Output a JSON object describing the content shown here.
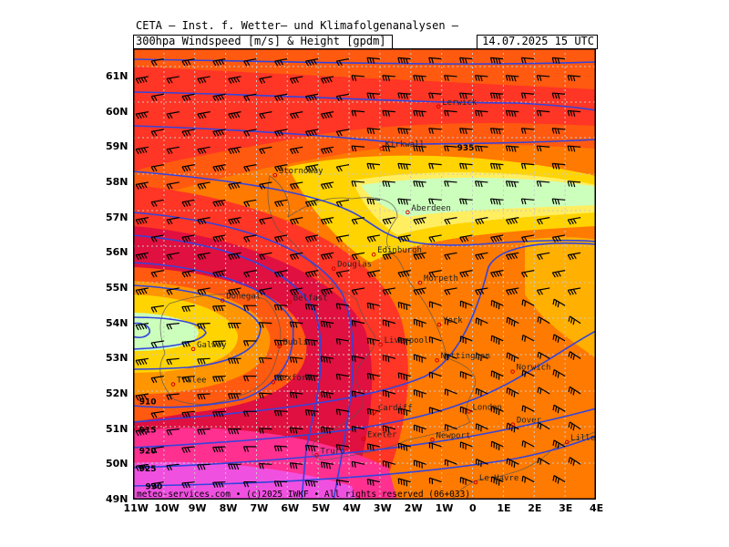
{
  "header": {
    "source_line": "CETA – Inst. f. Wetter– und Klimafolgenanalysen –",
    "product": "300hpa Windspeed [m/s] & Height [gpdm]",
    "valid_time": "14.07.2025 15 UTC"
  },
  "footer": {
    "copyright": "meteo-services.com • (c)2025 IWKF • All rights reserved (06+033)"
  },
  "map": {
    "lon_range": [
      -11,
      4
    ],
    "lat_range": [
      49,
      61.8
    ],
    "lat_labels": [
      "61N",
      "60N",
      "59N",
      "58N",
      "57N",
      "56N",
      "55N",
      "54N",
      "53N",
      "52N",
      "51N",
      "50N",
      "49N"
    ],
    "lon_labels": [
      "11W",
      "10W",
      "9W",
      "8W",
      "7W",
      "6W",
      "5W",
      "4W",
      "3W",
      "2W",
      "1W",
      "0",
      "1E",
      "2E",
      "3E",
      "4E"
    ],
    "contour_labels": [
      {
        "text": "935",
        "lon": -0.5,
        "lat": 58.9
      },
      {
        "text": "910",
        "lon": -10.8,
        "lat": 51.7
      },
      {
        "text": "915",
        "lon": -10.8,
        "lat": 50.9
      },
      {
        "text": "920",
        "lon": -10.8,
        "lat": 50.3
      },
      {
        "text": "925",
        "lon": -10.8,
        "lat": 49.8
      },
      {
        "text": "930",
        "lon": -10.6,
        "lat": 49.3
      }
    ],
    "cities": [
      {
        "name": "Lerwick",
        "lon": -1.1,
        "lat": 60.15
      },
      {
        "name": "Kirkwall",
        "lon": -2.95,
        "lat": 58.95
      },
      {
        "name": "Stornoway",
        "lon": -6.4,
        "lat": 58.2
      },
      {
        "name": "Aberdeen",
        "lon": -2.1,
        "lat": 57.15
      },
      {
        "name": "Edinburgh",
        "lon": -3.2,
        "lat": 55.95
      },
      {
        "name": "Douglas",
        "lon": -4.5,
        "lat": 55.55
      },
      {
        "name": "Morpeth",
        "lon": -1.7,
        "lat": 55.15
      },
      {
        "name": "Donegal",
        "lon": -8.1,
        "lat": 54.65
      },
      {
        "name": "Belfast",
        "lon": -5.93,
        "lat": 54.6
      },
      {
        "name": "York",
        "lon": -1.08,
        "lat": 53.96
      },
      {
        "name": "Galway",
        "lon": -9.05,
        "lat": 53.27
      },
      {
        "name": "Dublin",
        "lon": -6.26,
        "lat": 53.35
      },
      {
        "name": "Liverpool",
        "lon": -2.98,
        "lat": 53.4
      },
      {
        "name": "Nottingham",
        "lon": -1.15,
        "lat": 52.95
      },
      {
        "name": "Norwich",
        "lon": 1.3,
        "lat": 52.63
      },
      {
        "name": "Wexford",
        "lon": -6.46,
        "lat": 52.33
      },
      {
        "name": "Tralee",
        "lon": -9.7,
        "lat": 52.27
      },
      {
        "name": "Cardiff",
        "lon": -3.18,
        "lat": 51.48
      },
      {
        "name": "London",
        "lon": -0.12,
        "lat": 51.5
      },
      {
        "name": "Dover",
        "lon": 1.31,
        "lat": 51.13
      },
      {
        "name": "Exeter",
        "lon": -3.53,
        "lat": 50.72
      },
      {
        "name": "Newport",
        "lon": -1.3,
        "lat": 50.7
      },
      {
        "name": "Truro",
        "lon": -5.05,
        "lat": 50.26
      },
      {
        "name": "Lille",
        "lon": 3.06,
        "lat": 50.63
      },
      {
        "name": "Le Havre",
        "lon": 0.1,
        "lat": 49.49
      }
    ],
    "colors": {
      "frame": "#000000",
      "contour": "#3344dd",
      "grid": "#bbbbbb",
      "barb": "#000000"
    }
  }
}
